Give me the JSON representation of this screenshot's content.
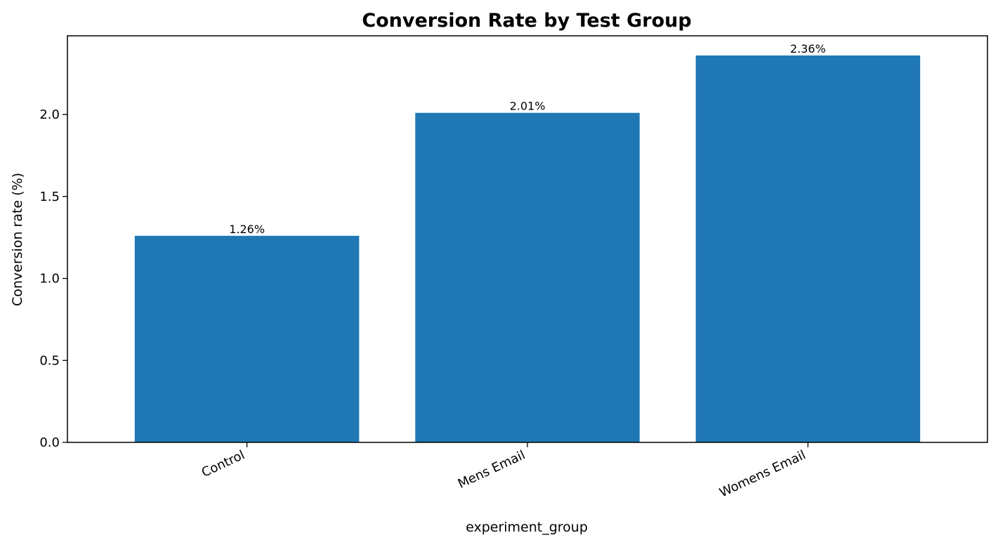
{
  "chart_data": {
    "type": "bar",
    "title": "Conversion Rate by Test Group",
    "xlabel": "experiment_group",
    "ylabel": "Conversion rate (%)",
    "categories": [
      "Control",
      "Mens Email",
      "Womens Email"
    ],
    "values": [
      1.26,
      2.01,
      2.36
    ],
    "data_labels": [
      "1.26%",
      "2.01%",
      "2.36%"
    ],
    "ylim": [
      0,
      2.48
    ],
    "yticks": [
      0.0,
      0.5,
      1.0,
      1.5,
      2.0
    ],
    "ytick_labels": [
      "0.0",
      "0.5",
      "1.0",
      "1.5",
      "2.0"
    ],
    "grid": false,
    "bar_color": "#1f77b4"
  }
}
